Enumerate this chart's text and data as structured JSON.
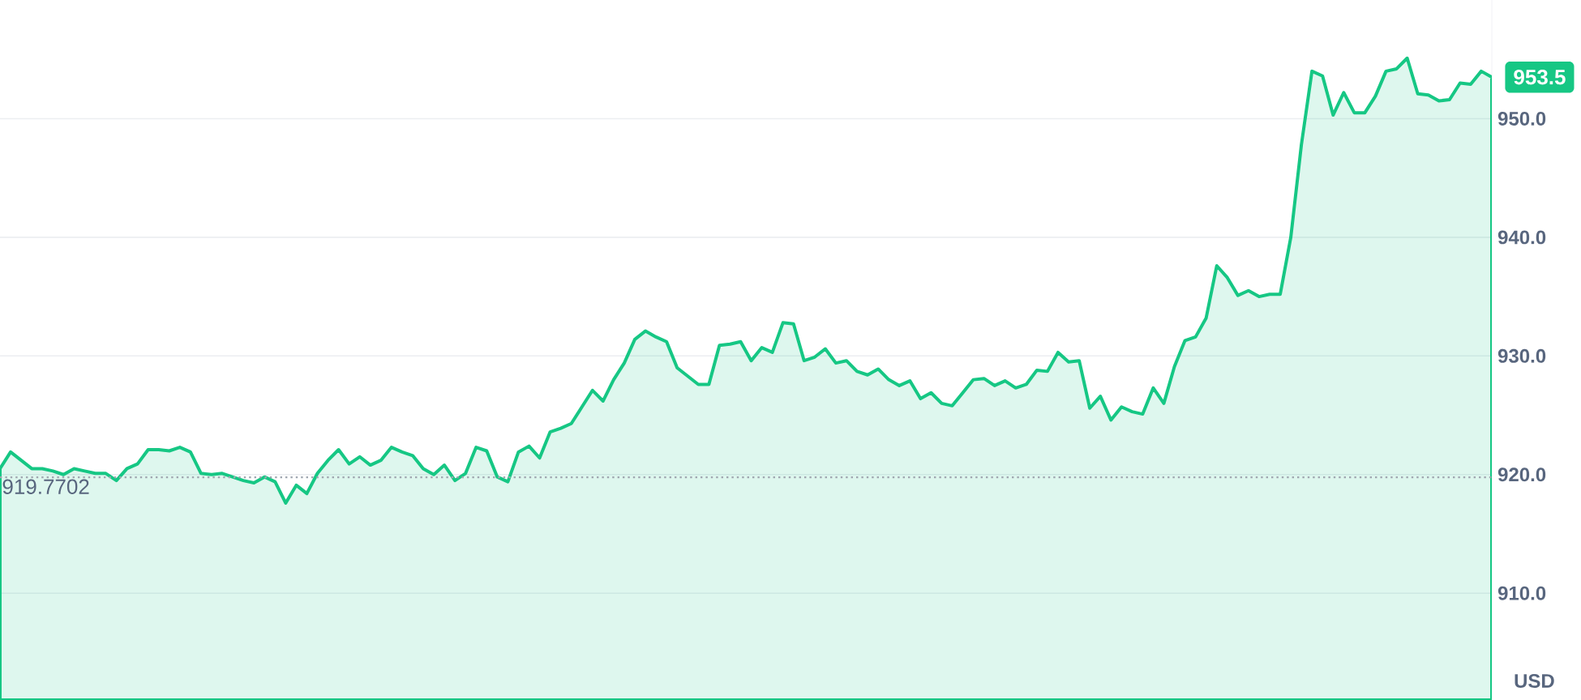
{
  "chart_data": {
    "type": "area",
    "ylabel": "USD",
    "categories": [
      null,
      null,
      null,
      null,
      null,
      null,
      null,
      null,
      null,
      null,
      null,
      null,
      null,
      null,
      null,
      null,
      null,
      null,
      null,
      null,
      null,
      null,
      null,
      null,
      null,
      null,
      null,
      null,
      null,
      null,
      null,
      null,
      null,
      null,
      null,
      null,
      null,
      null,
      null,
      null,
      null,
      null,
      null,
      null,
      null,
      null,
      null,
      null,
      null,
      null,
      null,
      null,
      null,
      null,
      null,
      null,
      null,
      null,
      null,
      null,
      null,
      null,
      null,
      null,
      null,
      null,
      null,
      null,
      null,
      null,
      null,
      null,
      null,
      null,
      null,
      null,
      null,
      null,
      null,
      null,
      null,
      null,
      null,
      null,
      null,
      null,
      null,
      null,
      null,
      null,
      null,
      null,
      null,
      null,
      null,
      null,
      null,
      null,
      null,
      null,
      null,
      null,
      null,
      null,
      null,
      null,
      null,
      null,
      null,
      null,
      null,
      null,
      null,
      null,
      null,
      null,
      null,
      null,
      null,
      null,
      null,
      null,
      null,
      null,
      null,
      null,
      null,
      null,
      null,
      null,
      null,
      null,
      null,
      null,
      null,
      null,
      null,
      null,
      null,
      null,
      null,
      null
    ],
    "series": [
      {
        "color": "#16c784",
        "values": [
          920.5,
          921.9,
          921.2,
          920.5,
          920.5,
          920.3,
          920.0,
          920.5,
          920.3,
          920.1,
          920.1,
          919.5,
          920.5,
          920.9,
          922.1,
          922.1,
          922.0,
          922.3,
          921.9,
          920.1,
          920.0,
          920.1,
          919.8,
          919.5,
          919.3,
          919.8,
          919.4,
          917.6,
          919.1,
          918.4,
          920.1,
          921.2,
          922.1,
          920.9,
          921.5,
          920.8,
          921.2,
          922.3,
          921.9,
          921.6,
          920.5,
          920.0,
          920.8,
          919.5,
          920.1,
          922.3,
          922.0,
          919.8,
          919.4,
          921.9,
          922.4,
          921.4,
          923.6,
          923.9,
          924.3,
          925.7,
          927.1,
          926.2,
          928.0,
          929.4,
          931.4,
          932.1,
          931.6,
          931.2,
          929.0,
          928.3,
          927.6,
          927.6,
          930.9,
          931.0,
          931.2,
          929.6,
          930.7,
          930.3,
          932.8,
          932.7,
          929.6,
          929.9,
          930.6,
          929.4,
          929.6,
          928.7,
          928.4,
          928.9,
          928.0,
          927.5,
          927.9,
          926.4,
          926.9,
          926.0,
          925.8,
          926.9,
          928.0,
          928.1,
          927.5,
          927.9,
          927.3,
          927.6,
          928.8,
          928.7,
          930.3,
          929.5,
          929.6,
          925.6,
          926.6,
          924.6,
          925.7,
          925.3,
          925.1,
          927.3,
          926.0,
          929.1,
          931.3,
          931.6,
          933.2,
          937.6,
          936.6,
          935.1,
          935.5,
          935.0,
          935.2,
          935.2,
          940.0,
          947.8,
          954.0,
          953.6,
          950.3,
          952.2,
          950.5,
          950.5,
          951.9,
          954.0,
          954.2,
          955.1,
          952.1,
          952.0,
          951.5,
          951.6,
          953.0,
          952.9,
          954.0,
          953.5
        ]
      }
    ],
    "ylim": [
      901,
      960
    ],
    "yticks": [
      {
        "value": 910,
        "label": "910.0"
      },
      {
        "value": 920,
        "label": "920.0"
      },
      {
        "value": 930,
        "label": "930.0"
      },
      {
        "value": 940,
        "label": "940.0"
      },
      {
        "value": 950,
        "label": "950.0"
      }
    ],
    "ref_lines": [
      {
        "axis": "y",
        "value": 919.7702,
        "label": "919.7702",
        "color": "#a0a6b0",
        "line_style": "dotted"
      }
    ],
    "annotations": [
      "953.5"
    ],
    "grid": "y",
    "marker": "none"
  }
}
